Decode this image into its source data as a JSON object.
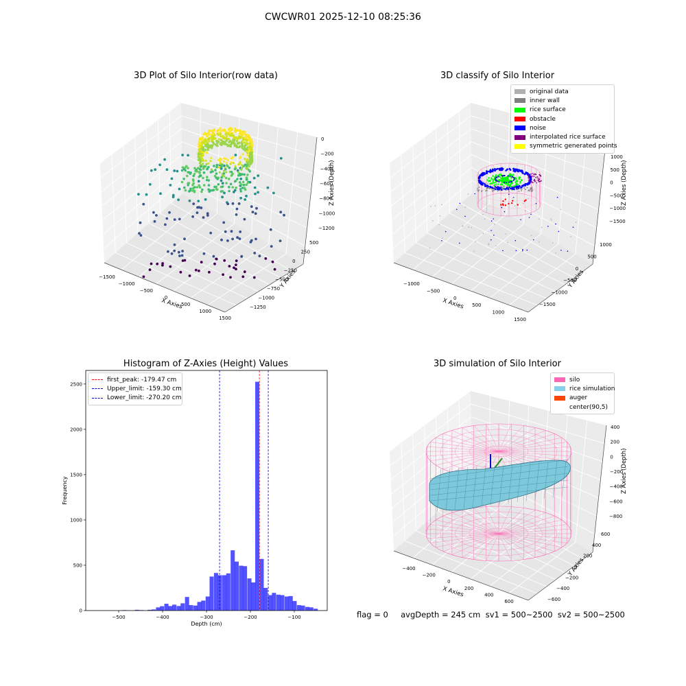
{
  "suptitle": "CWCWR01 2025-12-10 08:25:36",
  "status_text": "flag = 0     avgDepth = 245 cm  sv1 = 500~2500  sv2 = 500~2500",
  "chart_data": [
    {
      "type": "scatter",
      "title": "3D Plot of Silo Interior(row data)",
      "xlabel": "X Axies",
      "ylabel": "Y Axies",
      "zlabel": "Z Axies (Depth)",
      "x_ticks": [
        "−1500",
        "−1000",
        "−500",
        "0",
        "500",
        "1000",
        "1500"
      ],
      "y_ticks": [
        "500",
        "250",
        "0",
        "−250",
        "−500",
        "−750",
        "−1000",
        "−1250"
      ],
      "z_ticks": [
        "0",
        "−200",
        "−400",
        "−600",
        "−800",
        "−1000",
        "−1200"
      ],
      "colormap": [
        "#440154",
        "#3b528b",
        "#21918c",
        "#5ec962",
        "#fde725"
      ]
    },
    {
      "type": "scatter",
      "title": "3D classify of Silo Interior",
      "xlabel": "X Axies",
      "ylabel": "Y Axies",
      "zlabel": "Z Axies (Depth)",
      "x_ticks": [
        "−1000",
        "−500",
        "0",
        "500",
        "1000",
        "1500"
      ],
      "y_ticks": [
        "1000",
        "500",
        "0",
        "−500",
        "−1000",
        "−1500"
      ],
      "z_ticks": [
        "1000",
        "500",
        "0",
        "−500",
        "−1000",
        "−1500"
      ],
      "legend": [
        {
          "label": "original data",
          "color": "#b0b0b0"
        },
        {
          "label": "inner wall",
          "color": "#808080"
        },
        {
          "label": "rice surface",
          "color": "#00ff00"
        },
        {
          "label": "obstacle",
          "color": "#ff0000"
        },
        {
          "label": "noise",
          "color": "#0000ff"
        },
        {
          "label": "interpolated rice surface",
          "color": "#800080"
        },
        {
          "label": "symmetric generated points",
          "color": "#ffff00"
        }
      ]
    },
    {
      "type": "bar",
      "title": "Histogram of Z-Axies (Height) Values",
      "xlabel": "Depth (cm)",
      "ylabel": "Frequency",
      "xlim": [
        -575,
        -25
      ],
      "ylim": [
        0,
        2650
      ],
      "x_ticks": [
        -500,
        -400,
        -300,
        -200,
        -100
      ],
      "y_ticks": [
        0,
        500,
        1000,
        1500,
        2000,
        2500
      ],
      "bin_width": 9.44,
      "bin_starts": [
        -491,
        -482,
        -463,
        -453,
        -434,
        -425,
        -415,
        -406,
        -396,
        -387,
        -378,
        -368,
        -359,
        -349,
        -340,
        -330,
        -321,
        -312,
        -302,
        -293,
        -283,
        -274,
        -264,
        -255,
        -245,
        -236,
        -226,
        -217,
        -207,
        -198,
        -189,
        -179,
        -170,
        -160,
        -151,
        -141,
        -132,
        -122,
        -113,
        -104,
        -94,
        -85,
        -75,
        -66,
        -56
      ],
      "values": [
        5,
        2,
        8,
        5,
        8,
        12,
        35,
        48,
        75,
        50,
        65,
        50,
        80,
        150,
        60,
        55,
        95,
        110,
        155,
        375,
        415,
        390,
        390,
        410,
        665,
        540,
        495,
        490,
        355,
        310,
        2525,
        570,
        250,
        170,
        195,
        175,
        170,
        155,
        160,
        105,
        60,
        55,
        40,
        35,
        20
      ],
      "bar_color": "#0000ff",
      "vlines": [
        {
          "label": "first_peak: -179.47 cm",
          "x": -179.47,
          "color": "#ff0000"
        },
        {
          "label": "Upper_limit: -159.30 cm",
          "x": -159.3,
          "color": "#0000cc"
        },
        {
          "label": "Lower_limit: -270.20 cm",
          "x": -270.2,
          "color": "#0000cc"
        }
      ]
    },
    {
      "type": "area",
      "title": "3D simulation of Silo Interior",
      "xlabel": "X Axies",
      "ylabel": "Y Axies",
      "zlabel": "Z Axies (Depth)",
      "x_ticks": [
        "−400",
        "−200",
        "0",
        "200",
        "400",
        "600"
      ],
      "y_ticks": [
        "600",
        "400",
        "200",
        "0",
        "−200",
        "−400",
        "−600"
      ],
      "z_ticks": [
        "400",
        "200",
        "0",
        "−200",
        "−400",
        "−600",
        "−800"
      ],
      "legend": [
        {
          "label": "silo",
          "color": "#ff69b4"
        },
        {
          "label": "rice simulation",
          "color": "#87ceeb"
        },
        {
          "label": "auger",
          "color": "#ff4500"
        },
        {
          "label": "center(90,5)",
          "color": ""
        }
      ]
    }
  ]
}
